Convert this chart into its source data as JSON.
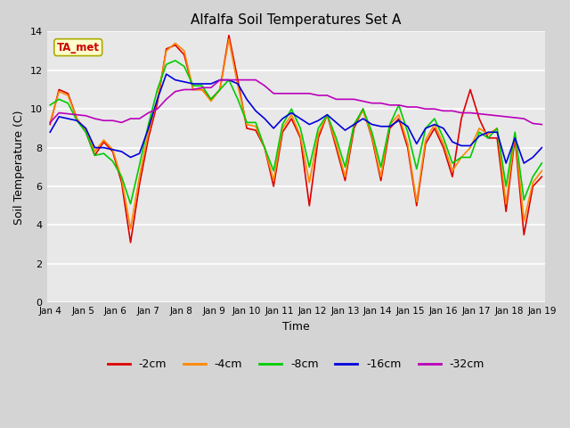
{
  "title": "Alfalfa Soil Temperatures Set A",
  "xlabel": "Time",
  "ylabel": "Soil Temperature (C)",
  "annotation": "TA_met",
  "ylim": [
    0,
    14
  ],
  "yticks": [
    0,
    2,
    4,
    6,
    8,
    10,
    12,
    14
  ],
  "xtick_labels": [
    "Jan 4",
    "Jan 5",
    "Jan 6",
    "Jan 7",
    "Jan 8",
    "Jan 9",
    "Jan 10",
    "Jan 11",
    "Jan 12",
    "Jan 13",
    "Jan 14",
    "Jan 15",
    "Jan 16",
    "Jan 17",
    "Jan 18",
    "Jan 19"
  ],
  "colors": {
    "-2cm": "#dd0000",
    "-4cm": "#ff8800",
    "-8cm": "#00cc00",
    "-16cm": "#0000dd",
    "-32cm": "#bb00bb"
  },
  "legend_labels": [
    "-2cm",
    "-4cm",
    "-8cm",
    "-16cm",
    "-32cm"
  ],
  "fig_bg_color": "#d4d4d4",
  "plot_bg_color": "#e8e8e8",
  "series": {
    "-2cm": [
      9.2,
      11.0,
      10.8,
      9.5,
      8.8,
      7.6,
      8.3,
      7.8,
      6.2,
      3.1,
      6.1,
      8.5,
      10.3,
      13.1,
      13.3,
      12.8,
      11.0,
      11.0,
      10.5,
      11.0,
      13.8,
      11.5,
      9.0,
      8.9,
      8.0,
      6.0,
      8.8,
      9.5,
      8.5,
      5.0,
      8.5,
      9.7,
      8.0,
      6.3,
      9.0,
      10.0,
      8.5,
      6.3,
      9.0,
      9.5,
      8.0,
      5.0,
      8.2,
      9.0,
      8.0,
      6.5,
      9.5,
      11.0,
      9.5,
      8.5,
      8.5,
      4.7,
      8.5,
      3.5,
      6.0,
      6.5
    ],
    "-4cm": [
      9.3,
      10.9,
      10.7,
      9.5,
      8.9,
      7.8,
      8.4,
      7.9,
      6.4,
      3.8,
      6.5,
      8.8,
      10.5,
      13.0,
      13.4,
      13.0,
      11.0,
      11.0,
      10.4,
      11.0,
      13.6,
      11.2,
      9.2,
      9.1,
      8.0,
      6.3,
      9.0,
      9.7,
      8.6,
      6.2,
      8.7,
      9.7,
      8.2,
      6.5,
      9.2,
      9.9,
      8.6,
      6.5,
      9.2,
      9.7,
      8.2,
      5.2,
      8.4,
      9.2,
      8.2,
      6.8,
      7.5,
      8.0,
      9.0,
      8.7,
      9.0,
      5.1,
      8.7,
      4.2,
      6.2,
      6.8
    ],
    "-8cm": [
      10.2,
      10.5,
      10.3,
      9.4,
      8.8,
      7.6,
      7.7,
      7.3,
      6.5,
      5.1,
      7.1,
      9.2,
      11.0,
      12.3,
      12.5,
      12.2,
      11.2,
      11.2,
      10.5,
      11.0,
      11.5,
      10.5,
      9.3,
      9.3,
      8.0,
      6.8,
      9.2,
      10.0,
      9.0,
      7.0,
      9.0,
      9.7,
      8.5,
      7.0,
      9.2,
      10.0,
      8.8,
      7.0,
      9.2,
      10.2,
      8.8,
      6.9,
      9.0,
      9.5,
      8.5,
      7.2,
      7.5,
      7.5,
      8.8,
      8.5,
      9.0,
      6.0,
      8.8,
      5.3,
      6.5,
      7.2
    ],
    "-16cm": [
      8.8,
      9.6,
      9.5,
      9.4,
      9.0,
      8.0,
      8.0,
      7.9,
      7.8,
      7.5,
      7.7,
      9.0,
      10.5,
      11.8,
      11.5,
      11.4,
      11.3,
      11.3,
      11.3,
      11.5,
      11.5,
      11.3,
      10.5,
      9.9,
      9.5,
      9.0,
      9.5,
      9.8,
      9.5,
      9.2,
      9.4,
      9.7,
      9.3,
      8.9,
      9.2,
      9.5,
      9.2,
      9.1,
      9.1,
      9.4,
      9.1,
      8.2,
      9.0,
      9.2,
      9.0,
      8.3,
      8.1,
      8.1,
      8.6,
      8.8,
      8.8,
      7.2,
      8.5,
      7.2,
      7.5,
      8.0
    ],
    "-32cm": [
      9.3,
      9.8,
      9.75,
      9.7,
      9.65,
      9.5,
      9.4,
      9.4,
      9.3,
      9.5,
      9.5,
      9.8,
      10.0,
      10.5,
      10.9,
      11.0,
      11.0,
      11.1,
      11.1,
      11.5,
      11.5,
      11.5,
      11.5,
      11.5,
      11.2,
      10.8,
      10.8,
      10.8,
      10.8,
      10.8,
      10.7,
      10.7,
      10.5,
      10.5,
      10.5,
      10.4,
      10.3,
      10.3,
      10.2,
      10.2,
      10.1,
      10.1,
      10.0,
      10.0,
      9.9,
      9.9,
      9.8,
      9.8,
      9.75,
      9.7,
      9.65,
      9.6,
      9.55,
      9.5,
      9.25,
      9.2
    ]
  }
}
